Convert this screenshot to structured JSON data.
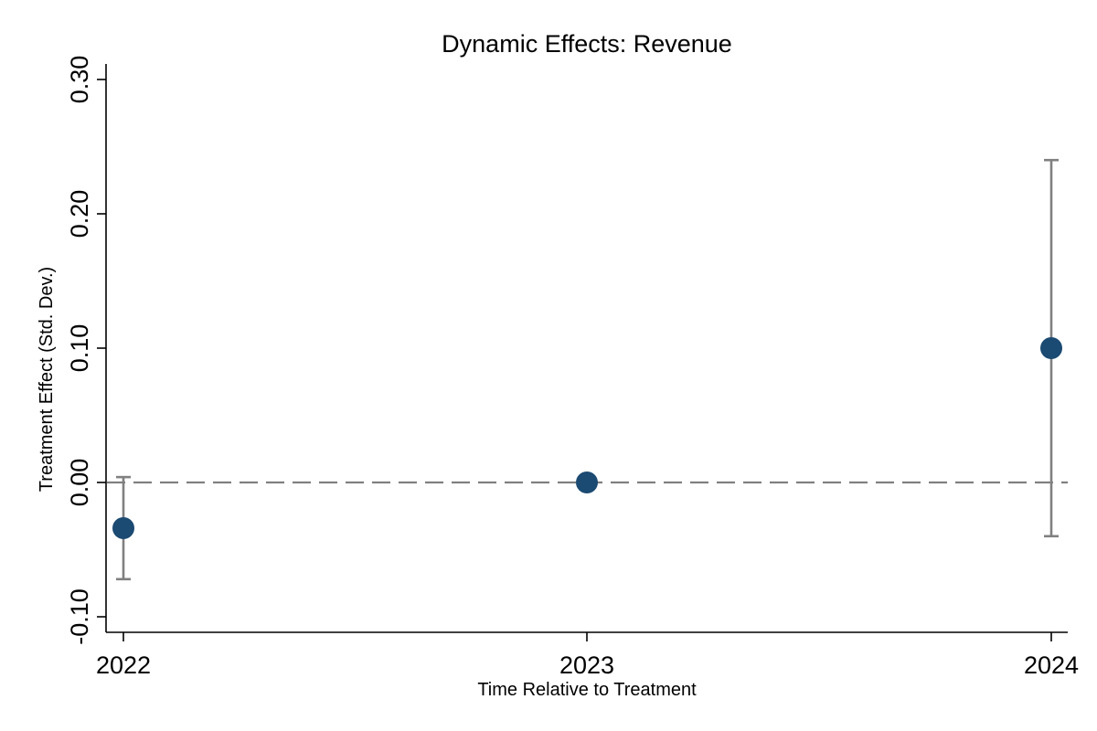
{
  "chart_data": {
    "type": "scatter",
    "title": "Dynamic Effects: Revenue",
    "xlabel": "Time Relative to Treatment",
    "ylabel": "Treatment Effect (Std. Dev.)",
    "x_categories": [
      "2022",
      "2023",
      "2024"
    ],
    "y_ticks": [
      -0.1,
      0.0,
      0.1,
      0.2,
      0.3
    ],
    "y_tick_labels": [
      "-0.10",
      "0.00",
      "0.10",
      "0.20",
      "0.30"
    ],
    "ylim": [
      -0.11,
      0.31
    ],
    "reference_line": {
      "y": 0,
      "style": "dashed",
      "color": "#808080"
    },
    "marker_color": "#1b4a72",
    "ci_color": "#808080",
    "grid": false,
    "series": [
      {
        "points": [
          {
            "x": "2022",
            "y": -0.034,
            "ci_low": -0.072,
            "ci_high": 0.004
          },
          {
            "x": "2023",
            "y": 0.0
          },
          {
            "x": "2024",
            "y": 0.1,
            "ci_low": -0.04,
            "ci_high": 0.24
          }
        ]
      }
    ]
  }
}
